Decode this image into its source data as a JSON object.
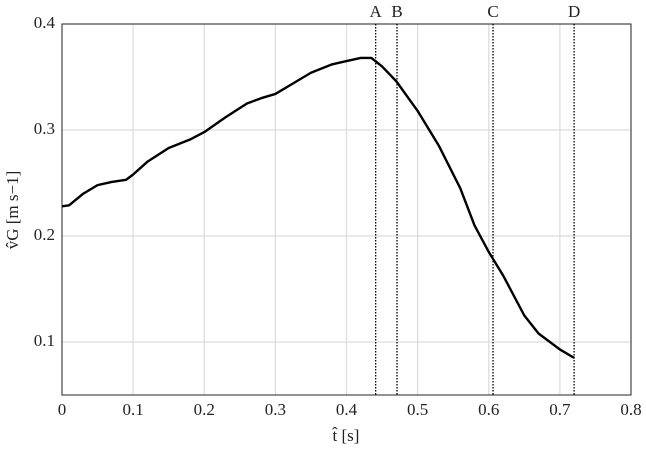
{
  "chart_data": {
    "type": "line",
    "xlabel": "t̂ [s]",
    "ylabel": "v̂G [m s−1]",
    "x": [
      0,
      0.01,
      0.03,
      0.05,
      0.07,
      0.09,
      0.1,
      0.12,
      0.15,
      0.18,
      0.2,
      0.23,
      0.26,
      0.28,
      0.3,
      0.32,
      0.35,
      0.38,
      0.4,
      0.42,
      0.435,
      0.45,
      0.47,
      0.5,
      0.53,
      0.56,
      0.58,
      0.6,
      0.62,
      0.65,
      0.67,
      0.7,
      0.72
    ],
    "values": [
      0.228,
      0.229,
      0.24,
      0.248,
      0.251,
      0.253,
      0.258,
      0.27,
      0.283,
      0.291,
      0.298,
      0.312,
      0.325,
      0.33,
      0.334,
      0.342,
      0.354,
      0.362,
      0.365,
      0.368,
      0.368,
      0.36,
      0.346,
      0.318,
      0.285,
      0.245,
      0.21,
      0.185,
      0.163,
      0.125,
      0.108,
      0.093,
      0.085
    ],
    "color": "#000000",
    "xlim": [
      0,
      0.8
    ],
    "xticks": [
      0,
      0.1,
      0.2,
      0.3,
      0.4,
      0.5,
      0.6,
      0.7,
      0.8
    ],
    "ylim": [
      0.05,
      0.4
    ],
    "yticks": [
      0.1,
      0.2,
      0.3,
      0.4
    ],
    "grid": true,
    "annotations": [
      {
        "label": "A",
        "x": 0.441
      },
      {
        "label": "B",
        "x": 0.471
      },
      {
        "label": "C",
        "x": 0.606
      },
      {
        "label": "D",
        "x": 0.72
      }
    ]
  }
}
